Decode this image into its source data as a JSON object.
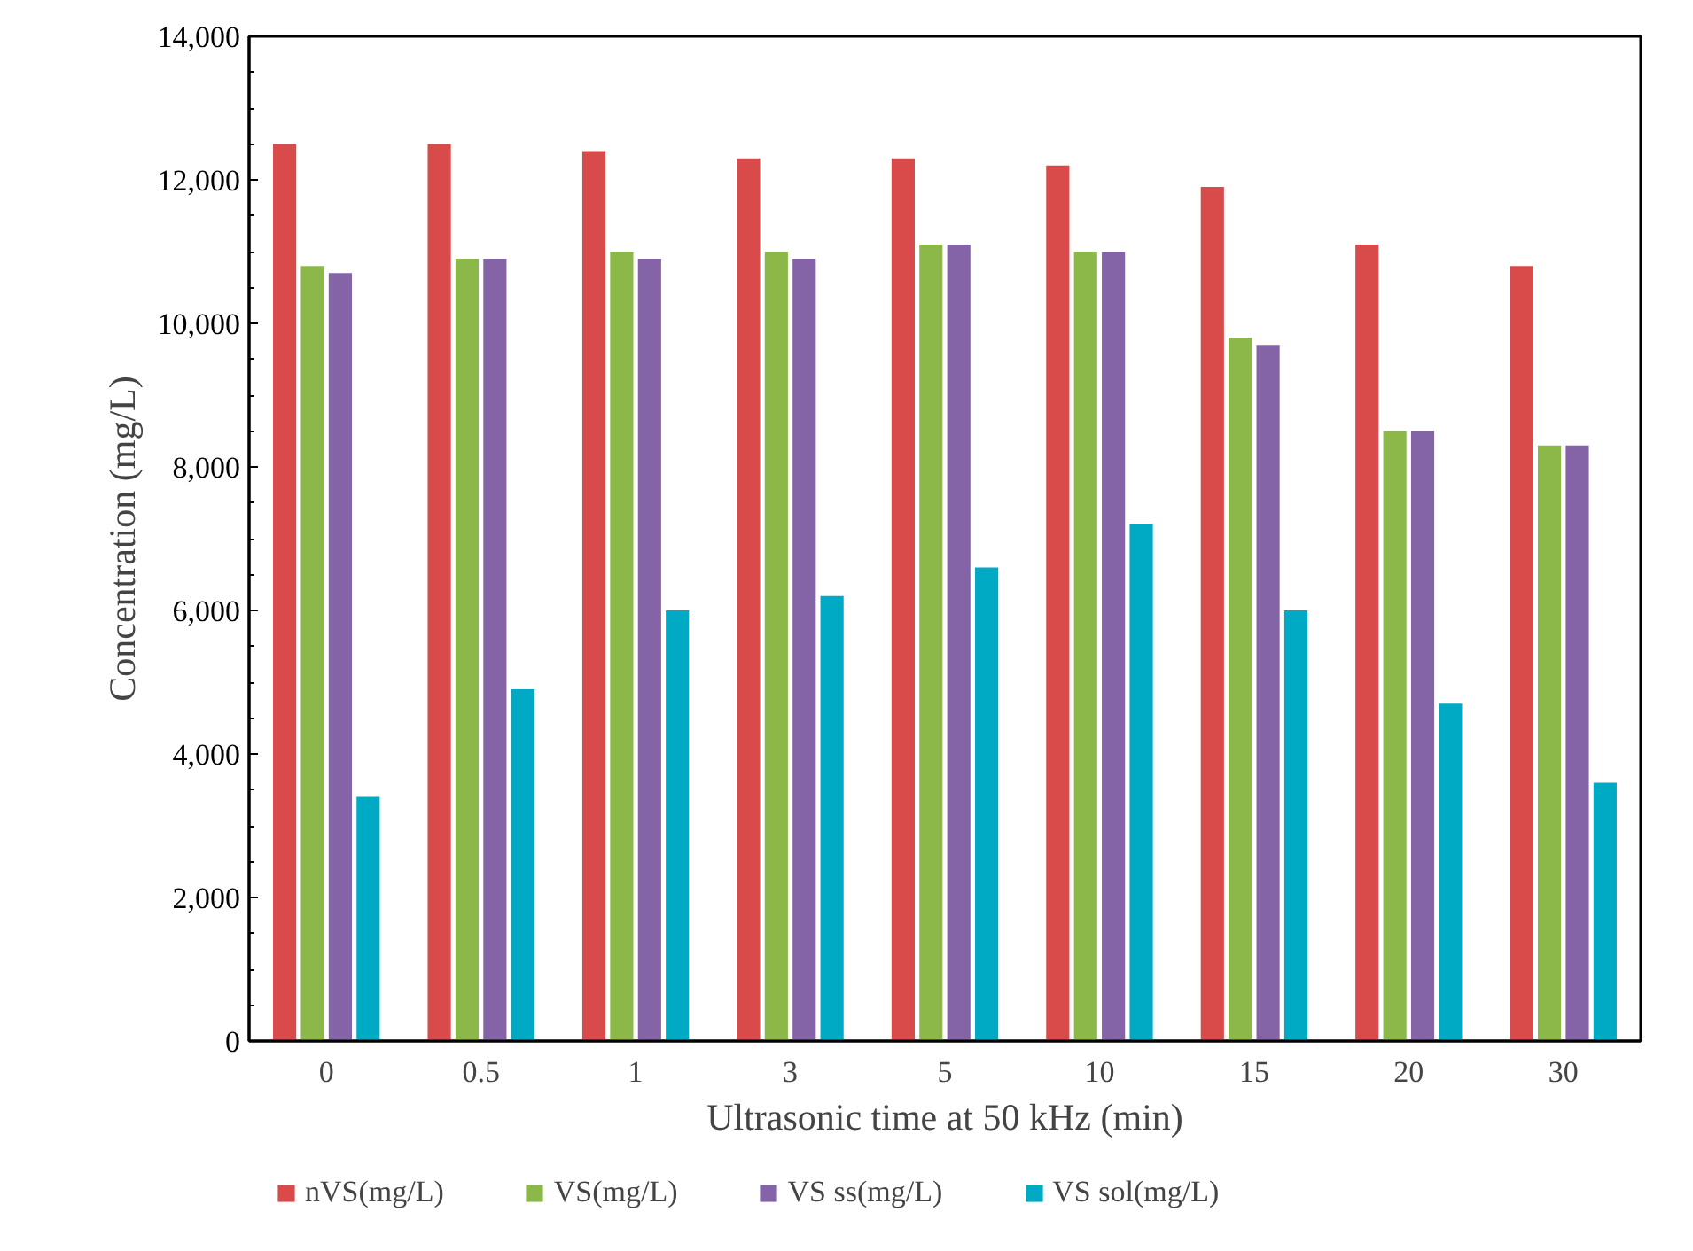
{
  "chart_data": {
    "type": "bar",
    "xlabel": "Ultrasonic time at 50 kHz (min)",
    "ylabel": "Concentration (mg/L)",
    "categories": [
      "0",
      "0.5",
      "1",
      "3",
      "5",
      "10",
      "15",
      "20",
      "30"
    ],
    "series": [
      {
        "name": "nVS(mg/L)",
        "color": "#d94a4a",
        "values": [
          12500,
          12500,
          12400,
          12300,
          12300,
          12200,
          11900,
          11100,
          10800
        ]
      },
      {
        "name": "VS(mg/L)",
        "color": "#8cb84a",
        "values": [
          10800,
          10900,
          11000,
          11000,
          11100,
          11000,
          9800,
          8500,
          8300
        ]
      },
      {
        "name": "VS ss(mg/L)",
        "color": "#8464a6",
        "values": [
          10700,
          10900,
          10900,
          10900,
          11100,
          11000,
          9700,
          8500,
          8300
        ]
      },
      {
        "name": "VS sol(mg/L)",
        "color": "#00aac4",
        "values": [
          3400,
          4900,
          6000,
          6200,
          6600,
          7200,
          6000,
          4700,
          3600
        ]
      }
    ],
    "ylim": [
      0,
      14000
    ],
    "yticks": [
      {
        "value": 0,
        "label": "0"
      },
      {
        "value": 2000,
        "label": "2,000"
      },
      {
        "value": 4000,
        "label": "4,000"
      },
      {
        "value": 6000,
        "label": "6,000"
      },
      {
        "value": 8000,
        "label": "8,000"
      },
      {
        "value": 10000,
        "label": "10,000"
      },
      {
        "value": 12000,
        "label": "12,000"
      },
      {
        "value": 14000,
        "label": "14,000"
      }
    ],
    "grid": false,
    "legend": "bottom"
  }
}
